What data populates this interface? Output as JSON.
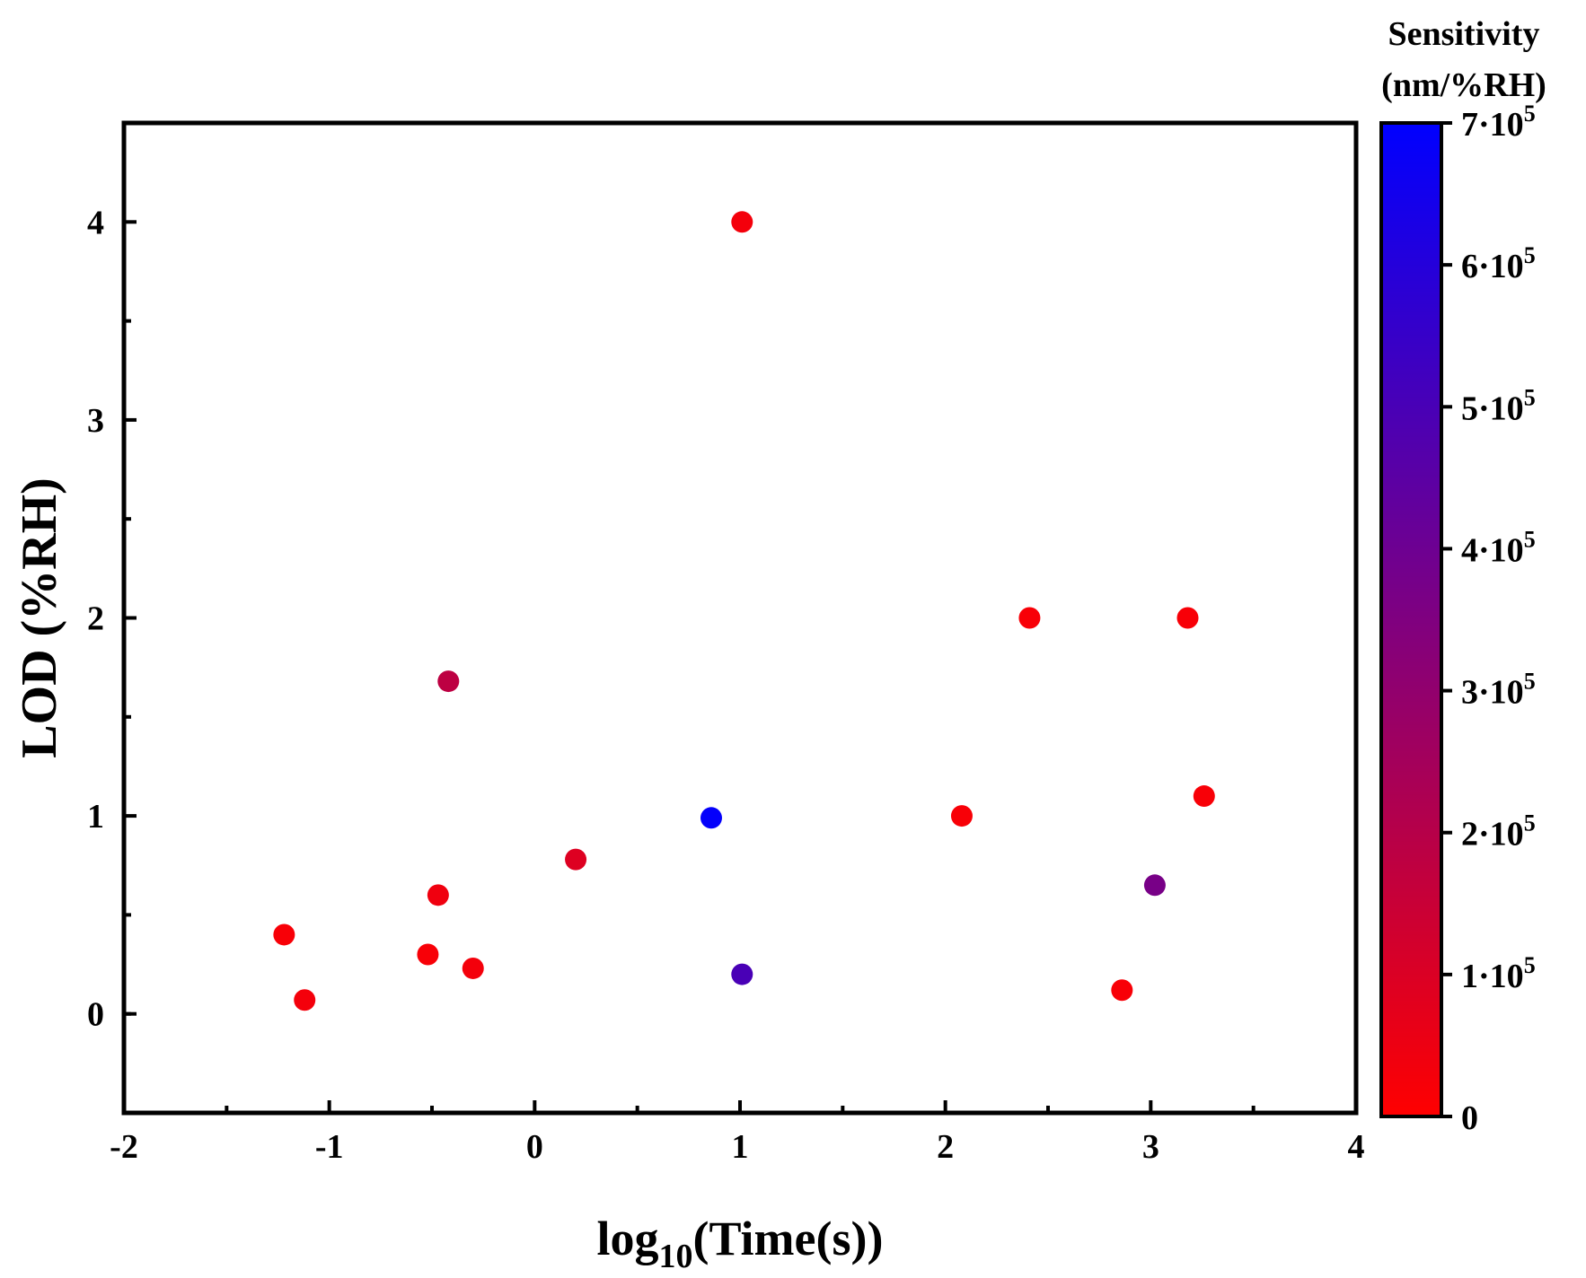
{
  "chart_data": {
    "type": "scatter",
    "xlabel_main": "log",
    "xlabel_sub": "10",
    "xlabel_rest": "(Time(s))",
    "ylabel": "LOD (%RH)",
    "xlim": [
      -2,
      4
    ],
    "ylim": [
      -0.5,
      4.5
    ],
    "xticks": [
      -2,
      -1,
      0,
      1,
      2,
      3,
      4
    ],
    "yticks": [
      0,
      1,
      2,
      3,
      4
    ],
    "xtick_labels": [
      "-2",
      "-1",
      "0",
      "1",
      "2",
      "3",
      "4"
    ],
    "ytick_labels": [
      "0",
      "1",
      "2",
      "3",
      "4"
    ],
    "grid": false,
    "colorbar": {
      "title_line1": "Sensitivity",
      "title_line2": "(nm/%RH)",
      "range": [
        0,
        700000
      ],
      "color_low": "#ff0000",
      "color_high": "#0000ff",
      "ticks": [
        {
          "value": 0,
          "label": "0",
          "mantissa": "",
          "exp": ""
        },
        {
          "value": 100000,
          "label": "1·10",
          "exp": "5"
        },
        {
          "value": 200000,
          "label": "2·10",
          "exp": "5"
        },
        {
          "value": 300000,
          "label": "3·10",
          "exp": "5"
        },
        {
          "value": 400000,
          "label": "4·10",
          "exp": "5"
        },
        {
          "value": 500000,
          "label": "5·10",
          "exp": "5"
        },
        {
          "value": 600000,
          "label": "6·10",
          "exp": "5"
        },
        {
          "value": 700000,
          "label": "7·10",
          "exp": "5"
        }
      ]
    },
    "points": [
      {
        "x": -1.22,
        "y": 0.4,
        "sensitivity": 20000
      },
      {
        "x": -1.12,
        "y": 0.07,
        "sensitivity": 30000
      },
      {
        "x": -0.52,
        "y": 0.3,
        "sensitivity": 20000
      },
      {
        "x": -0.47,
        "y": 0.6,
        "sensitivity": 40000
      },
      {
        "x": -0.42,
        "y": 1.68,
        "sensitivity": 180000
      },
      {
        "x": -0.3,
        "y": 0.23,
        "sensitivity": 30000
      },
      {
        "x": 0.2,
        "y": 0.78,
        "sensitivity": 90000
      },
      {
        "x": 0.86,
        "y": 0.99,
        "sensitivity": 690000
      },
      {
        "x": 1.01,
        "y": 4.0,
        "sensitivity": 30000
      },
      {
        "x": 1.01,
        "y": 0.2,
        "sensitivity": 500000
      },
      {
        "x": 2.08,
        "y": 1.0,
        "sensitivity": 20000
      },
      {
        "x": 2.41,
        "y": 2.0,
        "sensitivity": 20000
      },
      {
        "x": 2.86,
        "y": 0.12,
        "sensitivity": 20000
      },
      {
        "x": 3.02,
        "y": 0.65,
        "sensitivity": 370000
      },
      {
        "x": 3.18,
        "y": 2.0,
        "sensitivity": 20000
      },
      {
        "x": 3.26,
        "y": 1.1,
        "sensitivity": 20000
      }
    ]
  }
}
